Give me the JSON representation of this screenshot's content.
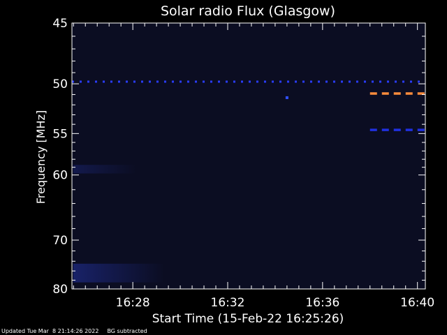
{
  "chart_data": {
    "type": "heatmap",
    "title": "Solar radio Flux (Glasgow)",
    "xlabel": "Start Time (15-Feb-22 16:25:26)",
    "ylabel": "Frequency [MHz]",
    "start_time": "16:25:26",
    "x_range": [
      "16:25:26",
      "16:40:20"
    ],
    "x_ticks": [
      "16:28",
      "16:32",
      "16:36",
      "16:40"
    ],
    "y_range": [
      45,
      80
    ],
    "y_scale": "reciprocal",
    "y_ticks": [
      45,
      50,
      55,
      60,
      70,
      80
    ],
    "background_color": "#0b0d22",
    "interference_bands": [
      {
        "freq": 49.8,
        "from": "16:25:26",
        "to": "16:40:20",
        "color": "#2a3cff",
        "style": "dotted"
      },
      {
        "freq": 50.9,
        "from": "16:38:00",
        "to": "16:40:20",
        "color": "#ff8c3c",
        "style": "dashed"
      },
      {
        "freq": 54.6,
        "from": "16:38:00",
        "to": "16:40:20",
        "color": "#2030e0",
        "style": "dashed"
      }
    ],
    "spots": [
      {
        "freq": 51.3,
        "time": "16:34:30",
        "color": "#3050ff"
      }
    ]
  },
  "footer": {
    "updated": "Updated Tue Mar  8 21:14:26 2022",
    "bg_note": "BG subtracted"
  }
}
